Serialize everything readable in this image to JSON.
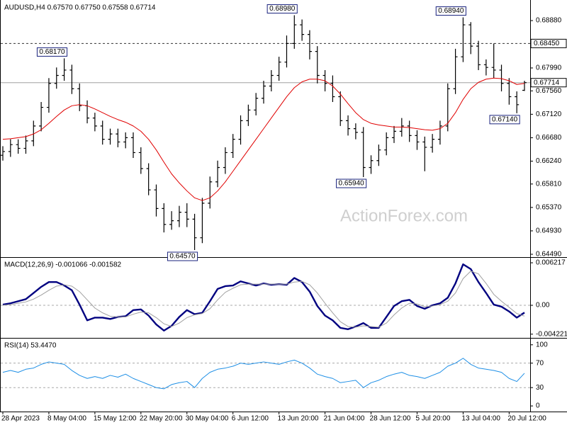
{
  "chart_data": [
    {
      "type": "ohlc",
      "title": "AUDUSD,H4  0.67570 0.67750 0.67558 0.67714",
      "watermark": "ActionForex.com",
      "color": "#000000",
      "categories": [
        "28 Apr 2023",
        null,
        null,
        null,
        null,
        null,
        "8 May 04:00",
        null,
        null,
        null,
        null,
        null,
        "15 May 12:00",
        null,
        null,
        null,
        null,
        null,
        "22 May 20:00",
        null,
        null,
        null,
        null,
        null,
        "30 May 04:00",
        null,
        null,
        null,
        null,
        null,
        "6 Jun 12:00",
        null,
        null,
        null,
        null,
        null,
        "13 Jun 20:00",
        null,
        null,
        null,
        null,
        null,
        "21 Jun 04:00",
        null,
        null,
        null,
        null,
        null,
        "28 Jun 12:00",
        null,
        null,
        null,
        null,
        null,
        "5 Jul 20:00",
        null,
        null,
        null,
        null,
        null,
        "13 Jul 04:00",
        null,
        null,
        null,
        null,
        null,
        "20 Jul 12:00",
        null,
        null
      ],
      "open": [
        0.6635,
        0.6642,
        0.6655,
        0.6648,
        0.6662,
        0.669,
        0.6725,
        0.677,
        0.6785,
        0.6795,
        0.676,
        0.6728,
        0.6705,
        0.669,
        0.6665,
        0.6675,
        0.666,
        0.6668,
        0.664,
        0.661,
        0.657,
        0.6535,
        0.6505,
        0.6512,
        0.6528,
        0.6515,
        0.648,
        0.6545,
        0.6585,
        0.6612,
        0.664,
        0.6665,
        0.67,
        0.672,
        0.6742,
        0.6765,
        0.6785,
        0.681,
        0.6845,
        0.688,
        0.6862,
        0.683,
        0.6785,
        0.677,
        0.6745,
        0.67,
        0.6685,
        0.6678,
        0.6612,
        0.6625,
        0.6645,
        0.6668,
        0.668,
        0.669,
        0.6672,
        0.666,
        0.665,
        0.6665,
        0.669,
        0.676,
        0.682,
        0.688,
        0.684,
        0.6805,
        0.68,
        0.6795,
        0.677,
        0.6745,
        0.6757
      ],
      "high": [
        0.6652,
        0.6665,
        0.6665,
        0.6672,
        0.67,
        0.6735,
        0.678,
        0.68,
        0.6817,
        0.6805,
        0.677,
        0.6738,
        0.6715,
        0.67,
        0.6685,
        0.6685,
        0.6678,
        0.6678,
        0.665,
        0.662,
        0.658,
        0.6545,
        0.653,
        0.654,
        0.6545,
        0.6525,
        0.6555,
        0.6595,
        0.6625,
        0.665,
        0.6675,
        0.671,
        0.673,
        0.6752,
        0.6775,
        0.6795,
        0.682,
        0.686,
        0.6898,
        0.689,
        0.687,
        0.684,
        0.6795,
        0.6785,
        0.6755,
        0.671,
        0.6695,
        0.6688,
        0.6635,
        0.6655,
        0.6678,
        0.669,
        0.6705,
        0.67,
        0.6682,
        0.667,
        0.6675,
        0.67,
        0.677,
        0.6835,
        0.6894,
        0.6885,
        0.685,
        0.6815,
        0.6845,
        0.6805,
        0.678,
        0.6755,
        0.6775
      ],
      "low": [
        0.6625,
        0.6632,
        0.6638,
        0.6638,
        0.6652,
        0.668,
        0.6715,
        0.676,
        0.6775,
        0.675,
        0.6718,
        0.6695,
        0.668,
        0.6655,
        0.6655,
        0.665,
        0.6648,
        0.663,
        0.66,
        0.656,
        0.652,
        0.649,
        0.6495,
        0.65,
        0.65,
        0.6457,
        0.647,
        0.6535,
        0.6575,
        0.66,
        0.663,
        0.6655,
        0.669,
        0.671,
        0.6732,
        0.6755,
        0.6775,
        0.68,
        0.6835,
        0.685,
        0.6815,
        0.677,
        0.6755,
        0.6735,
        0.669,
        0.6672,
        0.6665,
        0.6594,
        0.66,
        0.6615,
        0.6635,
        0.6658,
        0.667,
        0.666,
        0.6645,
        0.6605,
        0.664,
        0.6655,
        0.668,
        0.675,
        0.681,
        0.6825,
        0.6795,
        0.6785,
        0.678,
        0.6755,
        0.673,
        0.6714,
        0.67558
      ],
      "close": [
        0.6642,
        0.6655,
        0.6648,
        0.6662,
        0.669,
        0.6725,
        0.677,
        0.6785,
        0.6795,
        0.676,
        0.6728,
        0.6705,
        0.669,
        0.6665,
        0.6675,
        0.666,
        0.6668,
        0.664,
        0.661,
        0.657,
        0.6535,
        0.6505,
        0.6512,
        0.6528,
        0.6515,
        0.648,
        0.6545,
        0.6585,
        0.6612,
        0.664,
        0.6665,
        0.67,
        0.672,
        0.6742,
        0.6765,
        0.6785,
        0.681,
        0.6845,
        0.688,
        0.6862,
        0.683,
        0.6785,
        0.677,
        0.6745,
        0.67,
        0.6685,
        0.6678,
        0.6612,
        0.6625,
        0.6645,
        0.6668,
        0.668,
        0.669,
        0.6672,
        0.666,
        0.665,
        0.6665,
        0.669,
        0.676,
        0.682,
        0.688,
        0.684,
        0.6805,
        0.68,
        0.6795,
        0.677,
        0.6745,
        0.673,
        0.67714
      ],
      "series": [
        {
          "color": "#e00000",
          "values": [
            0.6665,
            0.6666,
            0.6668,
            0.667,
            0.6675,
            0.6683,
            0.6695,
            0.6708,
            0.672,
            0.6728,
            0.673,
            0.6728,
            0.6722,
            0.6715,
            0.6708,
            0.6702,
            0.6697,
            0.669,
            0.668,
            0.6665,
            0.6645,
            0.6622,
            0.66,
            0.6583,
            0.6568,
            0.6555,
            0.655,
            0.6555,
            0.6568,
            0.6585,
            0.6605,
            0.6625,
            0.6645,
            0.6665,
            0.6685,
            0.6705,
            0.6725,
            0.6745,
            0.6762,
            0.6773,
            0.6778,
            0.6778,
            0.6775,
            0.6765,
            0.675,
            0.6732,
            0.6715,
            0.6702,
            0.6695,
            0.6692,
            0.669,
            0.6688,
            0.6688,
            0.6687,
            0.6685,
            0.6683,
            0.6682,
            0.6685,
            0.6695,
            0.6715,
            0.674,
            0.676,
            0.6772,
            0.6778,
            0.678,
            0.6779,
            0.6775,
            0.6768,
            0.677
          ]
        }
      ],
      "ylim": [
        0.6445,
        0.6924
      ],
      "yticks": [
        {
          "value": 0.6888,
          "label": "0.68880"
        },
        {
          "value": 0.6799,
          "label": "0.67990"
        },
        {
          "value": 0.6756,
          "label": "0.67560"
        },
        {
          "value": 0.6712,
          "label": "0.67120"
        },
        {
          "value": 0.6668,
          "label": "0.66680"
        },
        {
          "value": 0.6624,
          "label": "0.66240"
        },
        {
          "value": 0.6581,
          "label": "0.65810"
        },
        {
          "value": 0.6537,
          "label": "0.65370"
        },
        {
          "value": 0.6493,
          "label": "0.64930"
        },
        {
          "value": 0.6449,
          "label": "0.64490"
        }
      ],
      "hlines": [
        {
          "value": 0.6845,
          "label": "0.68450",
          "style": "dashed"
        },
        {
          "value": 0.67714,
          "label": "0.67714",
          "style": "solid"
        }
      ],
      "annotations": [
        {
          "value": 0.6817,
          "label": "0.68170"
        },
        {
          "value": 0.6898,
          "label": "0.68980"
        },
        {
          "value": 0.6894,
          "label": "0.68940"
        },
        {
          "value": 0.6714,
          "label": "0.67140"
        },
        {
          "value": 0.6594,
          "label": "0.65940"
        },
        {
          "value": 0.6457,
          "label": "0.64570"
        }
      ],
      "grid": false
    },
    {
      "type": "line",
      "title": "MACD(12,26,9) -0.001066 -0.001582",
      "series": [
        {
          "color": "#000080",
          "values": [
            0.0001,
            0.0003,
            0.0006,
            0.0009,
            0.0018,
            0.0027,
            0.0034,
            0.0034,
            0.0029,
            0.0022,
            0.0001,
            -0.0022,
            -0.0018,
            -0.0018,
            -0.002,
            -0.0017,
            -0.0016,
            -0.0007,
            -0.0006,
            -0.0015,
            -0.0028,
            -0.0037,
            -0.003,
            -0.0017,
            -0.0007,
            -0.0013,
            -0.0011,
            0.0006,
            0.0024,
            0.0028,
            0.0029,
            0.0035,
            0.0032,
            0.0029,
            0.0032,
            0.003,
            0.0031,
            0.003,
            0.004,
            0.0034,
            0.002,
            -0.0001,
            -0.0015,
            -0.0022,
            -0.0033,
            -0.0035,
            -0.0031,
            -0.0026,
            -0.0033,
            -0.0033,
            -0.0017,
            -0.0001,
            0.0006,
            0.0008,
            -0.0001,
            -0.0005,
            0.0,
            0.0003,
            0.0011,
            0.0032,
            0.006,
            0.0053,
            0.0034,
            0.0018,
            0.0001,
            -0.0002,
            -0.0009,
            -0.0018,
            -0.001066
          ]
        },
        {
          "color": "#a0a0a0",
          "values": [
            0.0,
            0.0001,
            0.0003,
            0.0005,
            0.0009,
            0.0015,
            0.0022,
            0.0028,
            0.003,
            0.0028,
            0.002,
            0.0008,
            -0.0004,
            -0.0011,
            -0.0016,
            -0.0017,
            -0.0017,
            -0.0013,
            -0.001,
            -0.0011,
            -0.0018,
            -0.0027,
            -0.0031,
            -0.0026,
            -0.0018,
            -0.0014,
            -0.0012,
            -0.0005,
            0.0008,
            0.0019,
            0.0025,
            0.003,
            0.0031,
            0.0031,
            0.0031,
            0.0031,
            0.0031,
            0.0031,
            0.0034,
            0.0035,
            0.003,
            0.0018,
            0.0003,
            -0.0011,
            -0.0024,
            -0.0031,
            -0.0032,
            -0.003,
            -0.0031,
            -0.0032,
            -0.0026,
            -0.0014,
            -0.0004,
            0.0003,
            0.0002,
            -0.0002,
            -0.0001,
            0.0001,
            0.0006,
            0.0018,
            0.0039,
            0.005,
            0.0046,
            0.0032,
            0.0016,
            0.0006,
            -0.0003,
            -0.0012,
            -0.001582
          ]
        }
      ],
      "ylim": [
        -0.00466,
        0.00684
      ],
      "yticks": [
        0.006217,
        {
          "value": 0,
          "label": "0.00"
        },
        -0.004221
      ],
      "levels": [
        0
      ]
    },
    {
      "type": "line",
      "title": "RSI(14) 53.4470",
      "series": [
        {
          "color": "#1e8fe6",
          "values": [
            55,
            58,
            55,
            60,
            62,
            68,
            72,
            70,
            68,
            58,
            50,
            45,
            48,
            45,
            50,
            47,
            52,
            45,
            40,
            35,
            30,
            28,
            35,
            38,
            40,
            30,
            45,
            55,
            60,
            62,
            65,
            70,
            68,
            70,
            72,
            70,
            68,
            72,
            75,
            70,
            62,
            52,
            48,
            45,
            38,
            40,
            42,
            30,
            38,
            42,
            48,
            52,
            55,
            50,
            48,
            45,
            50,
            55,
            65,
            70,
            78,
            68,
            62,
            60,
            58,
            55,
            45,
            40,
            53.447
          ]
        }
      ],
      "ylim": [
        -8,
        109
      ],
      "yticks": [
        100,
        70,
        30,
        0
      ],
      "levels": [
        70,
        30
      ]
    }
  ]
}
